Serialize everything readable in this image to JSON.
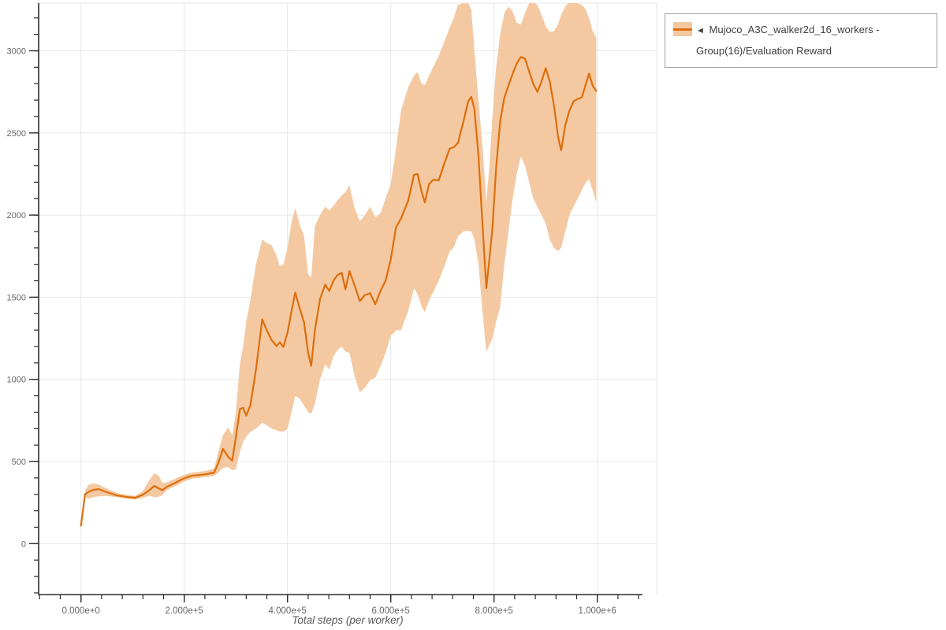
{
  "legend": {
    "arrow": "◄",
    "label": "Mujoco_A3C_walker2d_16_workers - Group(16)/Evaluation Reward"
  },
  "colors": {
    "line": "#de6e0b",
    "band": "#f4c9a2",
    "grid": "#e7e7e7",
    "spine": "#2b2b2b",
    "tick_text": "#666666",
    "axis_title": "#595959",
    "legend_border": "#9e9e9e",
    "legend_text": "#3d3d3d"
  },
  "chart_data": {
    "type": "line",
    "title": "",
    "xlabel": "Total steps (per worker)",
    "ylabel": "",
    "grid": true,
    "legend_position": "top-right",
    "axes": {
      "x": {
        "min": -82000,
        "max": 1115000,
        "ticks": [
          {
            "value": 0,
            "label": "0.000e+0"
          },
          {
            "value": 200000,
            "label": "2.000e+5"
          },
          {
            "value": 400000,
            "label": "4.000e+5"
          },
          {
            "value": 600000,
            "label": "6.000e+5"
          },
          {
            "value": 800000,
            "label": "8.000e+5"
          },
          {
            "value": 1000000,
            "label": "1.000e+6"
          }
        ],
        "minor_start": -80000,
        "minor_end": 1080000,
        "minor_step": 40000
      },
      "y": {
        "min": -310,
        "max": 3290,
        "ticks": [
          0,
          500,
          1000,
          1500,
          2000,
          2500,
          3000
        ],
        "minor_start": -300,
        "minor_end": 3200,
        "minor_step": 100
      }
    },
    "series": [
      {
        "name": "Mujoco_A3C_walker2d_16_workers - Group(16)/Evaluation Reward",
        "x": [
          0,
          8000,
          14000,
          23000,
          34000,
          50000,
          70000,
          90000,
          105000,
          120000,
          133000,
          142000,
          150000,
          158000,
          166000,
          183000,
          197000,
          214000,
          229000,
          243000,
          258000,
          266000,
          275000,
          285000,
          293000,
          300000,
          308000,
          314000,
          320000,
          328000,
          339000,
          351000,
          360000,
          369000,
          379000,
          385000,
          392000,
          400000,
          408000,
          415000,
          424000,
          432000,
          440000,
          446000,
          453000,
          463000,
          473000,
          481000,
          489000,
          497000,
          505000,
          512000,
          520000,
          530000,
          540000,
          550000,
          560000,
          570000,
          580000,
          590000,
          600000,
          610000,
          620000,
          634000,
          645000,
          652000,
          660000,
          666000,
          674000,
          682000,
          693000,
          703000,
          714000,
          722000,
          730000,
          740000,
          750000,
          756000,
          762000,
          770000,
          778000,
          785000,
          791000,
          797000,
          804000,
          812000,
          820000,
          828000,
          836000,
          844000,
          852000,
          860000,
          868000,
          876000,
          884000,
          892000,
          900000,
          908000,
          916000,
          924000,
          930000,
          938000,
          946000,
          954000,
          962000,
          970000,
          978000,
          984000,
          991000,
          998000
        ],
        "mean": [
          110,
          300,
          313,
          327,
          332,
          313,
          293,
          284,
          279,
          298,
          327,
          351,
          337,
          325,
          346,
          370,
          394,
          413,
          418,
          423,
          433,
          490,
          577,
          529,
          505,
          649,
          820,
          827,
          779,
          841,
          1058,
          1365,
          1298,
          1240,
          1202,
          1226,
          1197,
          1284,
          1418,
          1529,
          1428,
          1346,
          1160,
          1082,
          1298,
          1490,
          1577,
          1538,
          1601,
          1635,
          1649,
          1548,
          1659,
          1572,
          1476,
          1514,
          1524,
          1457,
          1538,
          1601,
          1731,
          1923,
          1981,
          2091,
          2245,
          2250,
          2139,
          2077,
          2188,
          2215,
          2212,
          2308,
          2404,
          2413,
          2438,
          2560,
          2692,
          2720,
          2644,
          2356,
          1923,
          1555,
          1731,
          1923,
          2284,
          2572,
          2716,
          2788,
          2861,
          2923,
          2962,
          2952,
          2875,
          2798,
          2750,
          2813,
          2894,
          2813,
          2668,
          2476,
          2394,
          2548,
          2635,
          2692,
          2707,
          2716,
          2800,
          2861,
          2788,
          2755
        ],
        "lower": [
          110,
          282,
          272,
          282,
          288,
          290,
          282,
          273,
          268,
          279,
          292,
          282,
          285,
          295,
          325,
          350,
          374,
          394,
          400,
          405,
          412,
          432,
          462,
          466,
          447,
          452,
          560,
          620,
          650,
          680,
          700,
          736,
          720,
          700,
          690,
          683,
          680,
          700,
          800,
          900,
          880,
          840,
          800,
          790,
          850,
          1000,
          1090,
          1060,
          1140,
          1180,
          1200,
          1170,
          1160,
          1020,
          920,
          950,
          995,
          1010,
          1080,
          1160,
          1264,
          1298,
          1300,
          1420,
          1553,
          1520,
          1440,
          1409,
          1480,
          1530,
          1600,
          1683,
          1780,
          1803,
          1870,
          1899,
          1905,
          1900,
          1850,
          1700,
          1400,
          1168,
          1210,
          1250,
          1350,
          1442,
          1700,
          1900,
          2100,
          2250,
          2356,
          2300,
          2200,
          2100,
          2050,
          2000,
          1950,
          1850,
          1800,
          1780,
          1800,
          1900,
          2000,
          2050,
          2100,
          2150,
          2200,
          2220,
          2150,
          2077
        ],
        "upper": [
          110,
          322,
          355,
          368,
          360,
          335,
          308,
          296,
          291,
          320,
          390,
          428,
          415,
          370,
          372,
          396,
          416,
          432,
          438,
          444,
          458,
          560,
          660,
          707,
          659,
          800,
          1100,
          1200,
          1350,
          1480,
          1700,
          1851,
          1830,
          1817,
          1750,
          1692,
          1697,
          1800,
          1960,
          2043,
          1940,
          1875,
          1640,
          1620,
          1933,
          2000,
          2052,
          2029,
          2058,
          2090,
          2120,
          2140,
          2183,
          2043,
          1962,
          2000,
          2052,
          1986,
          2010,
          2100,
          2192,
          2400,
          2640,
          2780,
          2850,
          2870,
          2800,
          2790,
          2850,
          2900,
          2970,
          3050,
          3140,
          3200,
          3280,
          3290,
          3290,
          3250,
          3000,
          2700,
          2400,
          2080,
          2300,
          2600,
          2900,
          3100,
          3230,
          3270,
          3240,
          3170,
          3160,
          3230,
          3290,
          3295,
          3280,
          3220,
          3150,
          3115,
          3120,
          3160,
          3220,
          3270,
          3300,
          3300,
          3290,
          3280,
          3250,
          3200,
          3120,
          3080
        ]
      }
    ]
  }
}
